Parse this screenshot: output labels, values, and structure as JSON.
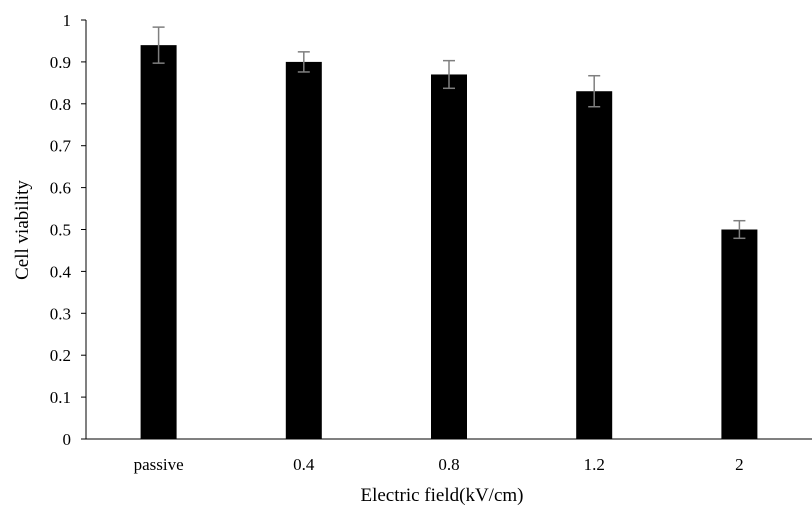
{
  "chart_data": {
    "type": "bar",
    "title": "",
    "xlabel": "Electric field(kV/cm)",
    "ylabel": "Cell viability",
    "categories": [
      "passive",
      "0.4",
      "0.8",
      "1.2",
      "2"
    ],
    "values": [
      0.94,
      0.9,
      0.87,
      0.83,
      0.5
    ],
    "error": [
      0.043,
      0.024,
      0.033,
      0.037,
      0.021
    ],
    "ylim": [
      0,
      1
    ],
    "yticks": [
      0,
      0.1,
      0.2,
      0.3,
      0.4,
      0.5,
      0.6,
      0.7,
      0.8,
      0.9,
      1
    ],
    "ytick_labels": [
      "0",
      "0.1",
      "0.2",
      "0.3",
      "0.4",
      "0.5",
      "0.6",
      "0.7",
      "0.8",
      "0.9",
      "1"
    ],
    "grid": false,
    "legend": "none",
    "bar_color": "#000000",
    "error_bar_color": "#7f7f7f"
  }
}
